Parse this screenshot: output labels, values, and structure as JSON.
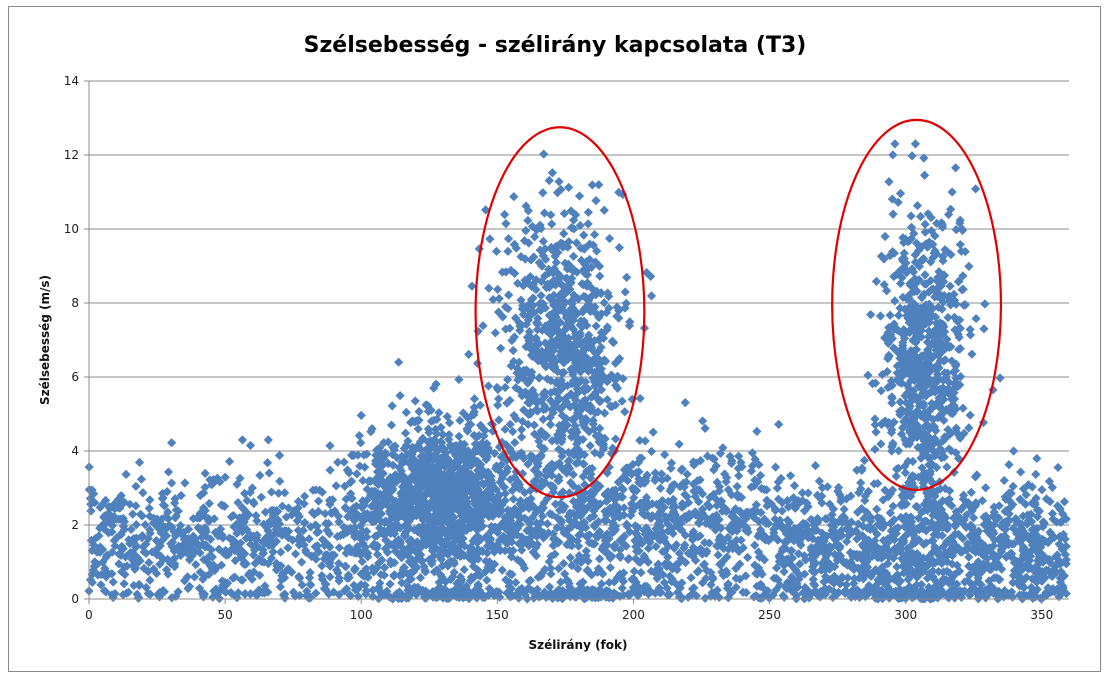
{
  "chart_data": {
    "type": "scatter",
    "title": "Szélsebesség - szélirány kapcsolata (T3)",
    "xlabel": "Szélirány (fok)",
    "ylabel": "Szélsebesség (m/s)",
    "xlim": [
      0,
      360
    ],
    "ylim": [
      0,
      14
    ],
    "xticks": [
      0,
      50,
      100,
      150,
      200,
      250,
      300,
      350
    ],
    "yticks": [
      0,
      2,
      4,
      6,
      8,
      10,
      12,
      14
    ],
    "grid": "horizontal",
    "marker": "diamond",
    "marker_color": "#4f81bd",
    "highlight_color": "#e00000",
    "highlights": [
      {
        "name": "south-peak",
        "center_x": 173,
        "center_y": 7.75,
        "radius_x": 31,
        "radius_y": 5
      },
      {
        "name": "northwest-peak",
        "center_x": 304,
        "center_y": 7.95,
        "radius_x": 31,
        "radius_y": 5
      }
    ],
    "point_clusters": [
      {
        "name": "base-0-100",
        "count": 650,
        "x_range": [
          0,
          95
        ],
        "y_mean": 1.6,
        "y_sd": 0.9,
        "y_max": 4.3
      },
      {
        "name": "base-100-250",
        "count": 1500,
        "x_range": [
          95,
          255
        ],
        "y_mean": 1.9,
        "y_sd": 1.1,
        "y_max": 5.5
      },
      {
        "name": "hump-110-150",
        "count": 900,
        "x_center": 130,
        "x_sd": 14,
        "y_mean": 2.9,
        "y_sd": 1.0,
        "y_max": 6.4
      },
      {
        "name": "base-250-360",
        "count": 1100,
        "x_range": [
          255,
          360
        ],
        "y_mean": 1.3,
        "y_sd": 0.9,
        "y_max": 4.0
      },
      {
        "name": "peak-south",
        "count": 850,
        "x_center": 174,
        "x_sd": 11,
        "y_mean": 6.8,
        "y_sd": 1.9,
        "y_max": 12.1
      },
      {
        "name": "peak-northwest",
        "count": 800,
        "x_center": 307,
        "x_sd": 8,
        "y_mean": 6.4,
        "y_sd": 2.2,
        "y_max": 12.3
      }
    ]
  }
}
